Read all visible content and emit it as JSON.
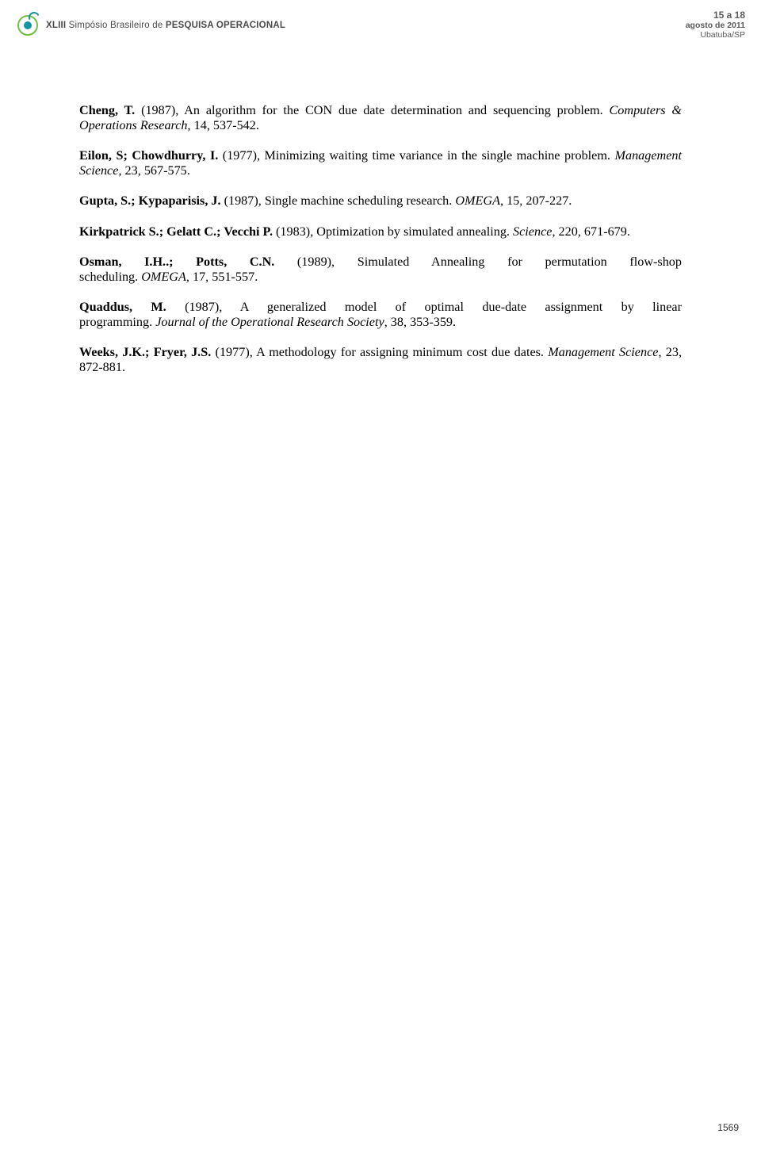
{
  "header": {
    "roman": "XLIII",
    "name_part1": " Simpósio Brasileiro de ",
    "name_part2": "PESQUISA OPERACIONAL",
    "date_line": "15 a 18",
    "month_line": "agosto de 2011",
    "loc_line": "Ubatuba/SP"
  },
  "refs": [
    {
      "authors": "Cheng, T.",
      "body": " (1987), An algorithm for the CON due date determination and sequencing problem. ",
      "journal": "Computers & Operations Research",
      "tail": ", 14, 537-542."
    },
    {
      "authors": "Eilon, S; Chowdhurry, I.",
      "body": " (1977), Minimizing waiting time variance in the single machine problem. ",
      "journal": "Management Science",
      "tail": ", 23, 567-575."
    },
    {
      "authors": "Gupta, S.;  Kypaparisis, J.",
      "body": " (1987), Single machine scheduling research. ",
      "journal": "OMEGA",
      "tail": ", 15, 207-227."
    },
    {
      "authors": "Kirkpatrick S.; Gelatt C.; Vecchi P.",
      "body": " (1983), Optimization by simulated annealing. ",
      "journal": "Science",
      "tail": ", 220, 671-679."
    },
    {
      "authors": "Osman, I.H..; Potts, C.N.",
      "body_a": " (1989), Simulated Annealing for permutation flow-shop",
      "body_b": "scheduling. ",
      "journal": "OMEGA",
      "tail": ", 17, 551-557."
    },
    {
      "authors": "Quaddus, M.",
      "body_a": " (1987), A generalized model of optimal due-date assignment by linear",
      "body_b": "programming. ",
      "journal": "Journal of the Operational Research Society",
      "tail": ", 38, 353-359."
    },
    {
      "authors": "Weeks, J.K.; Fryer, J.S.",
      "body": " (1977), A methodology for assigning minimum cost due dates. ",
      "journal": "Management Science",
      "tail": ", 23, 872-881."
    }
  ],
  "page_number": "1569"
}
